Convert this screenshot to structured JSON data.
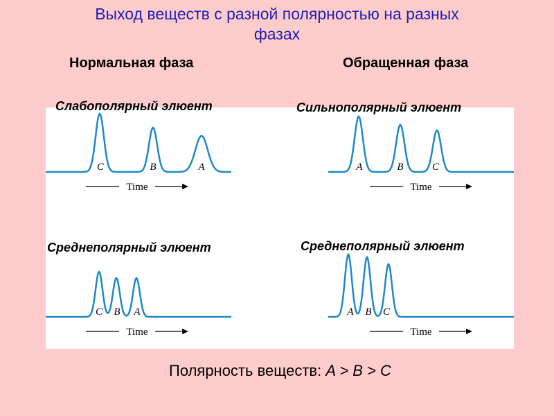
{
  "title_line1": "Выход  веществ с разной полярностью на разных",
  "title_line2": "фазах",
  "normal_phase": "Нормальная фаза",
  "reversed_phase": "Обращенная фаза",
  "chromatograms": [
    {
      "id": "np-weak",
      "eluent": "Слабополярный  элюент",
      "peaks": [
        "C",
        "B",
        "A"
      ],
      "axis": "Time"
    },
    {
      "id": "rp-strong",
      "eluent": "Сильнополярный  элюент",
      "peaks": [
        "A",
        "B",
        "C"
      ],
      "axis": "Time"
    },
    {
      "id": "np-medium",
      "eluent": "Среднеполярный  элюент",
      "peaks": [
        "C",
        "B",
        "A"
      ],
      "axis": "Time"
    },
    {
      "id": "rp-medium",
      "eluent": "Среднеполярный  элюент",
      "peaks": [
        "A",
        "B",
        "C"
      ],
      "axis": "Time"
    }
  ],
  "footer_prefix": "Полярность веществ: ",
  "footer_formula": "A > B > C",
  "colors": {
    "title": "#1f1fb4",
    "curve": "#1e88c8",
    "background": "#ffcccc"
  }
}
